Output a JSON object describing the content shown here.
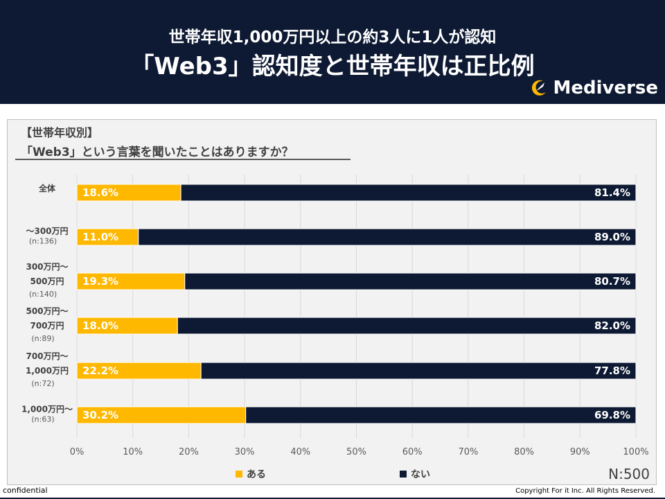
{
  "header": {
    "subtitle": "世帯年収1,000万円以上の約3人に1人が認知",
    "title": "「Web3」認知度と世帯年収は正比例",
    "logo_text": "Mediverse"
  },
  "question": {
    "category": "【世帯年収別】",
    "text": "「Web3」という言葉を聞いたことはありますか？"
  },
  "sample_total": "N:500",
  "footer": {
    "left": "confidential",
    "right": "Copyright For it Inc. All Rights Reserved."
  },
  "colors": {
    "header_bg": "#0e1a33",
    "aru": "#ffb800",
    "nai": "#0e1a33"
  },
  "chart_data": {
    "type": "bar",
    "orientation": "horizontal",
    "stacked": true,
    "categories": [
      {
        "label": [
          "全体"
        ],
        "n": ""
      },
      {
        "label": [
          "～300万円"
        ],
        "n": "(n:136)"
      },
      {
        "label": [
          "300万円～",
          "500万円"
        ],
        "n": "(n:140)"
      },
      {
        "label": [
          "500万円～",
          "700万円"
        ],
        "n": "(n:89)"
      },
      {
        "label": [
          "700万円～",
          "1,000万円"
        ],
        "n": "(n:72)"
      },
      {
        "label": [
          "1,000万円～"
        ],
        "n": "(n:63)"
      }
    ],
    "series": [
      {
        "name": "ある",
        "color": "#ffb800",
        "values": [
          18.6,
          11.0,
          19.3,
          18.0,
          22.2,
          30.2
        ],
        "labels": [
          "18.6%",
          "11.0%",
          "19.3%",
          "18.0%",
          "22.2%",
          "30.2%"
        ]
      },
      {
        "name": "ない",
        "color": "#0e1a33",
        "values": [
          81.4,
          89.0,
          80.7,
          82.0,
          77.8,
          69.8
        ],
        "labels": [
          "81.4%",
          "89.0%",
          "80.7%",
          "82.0%",
          "77.8%",
          "69.8%"
        ]
      }
    ],
    "xlim": [
      0,
      100
    ],
    "xticks": [
      "0%",
      "10%",
      "20%",
      "30%",
      "40%",
      "50%",
      "60%",
      "70%",
      "80%",
      "90%",
      "100%"
    ],
    "grid": true,
    "legend_position": "bottom"
  }
}
